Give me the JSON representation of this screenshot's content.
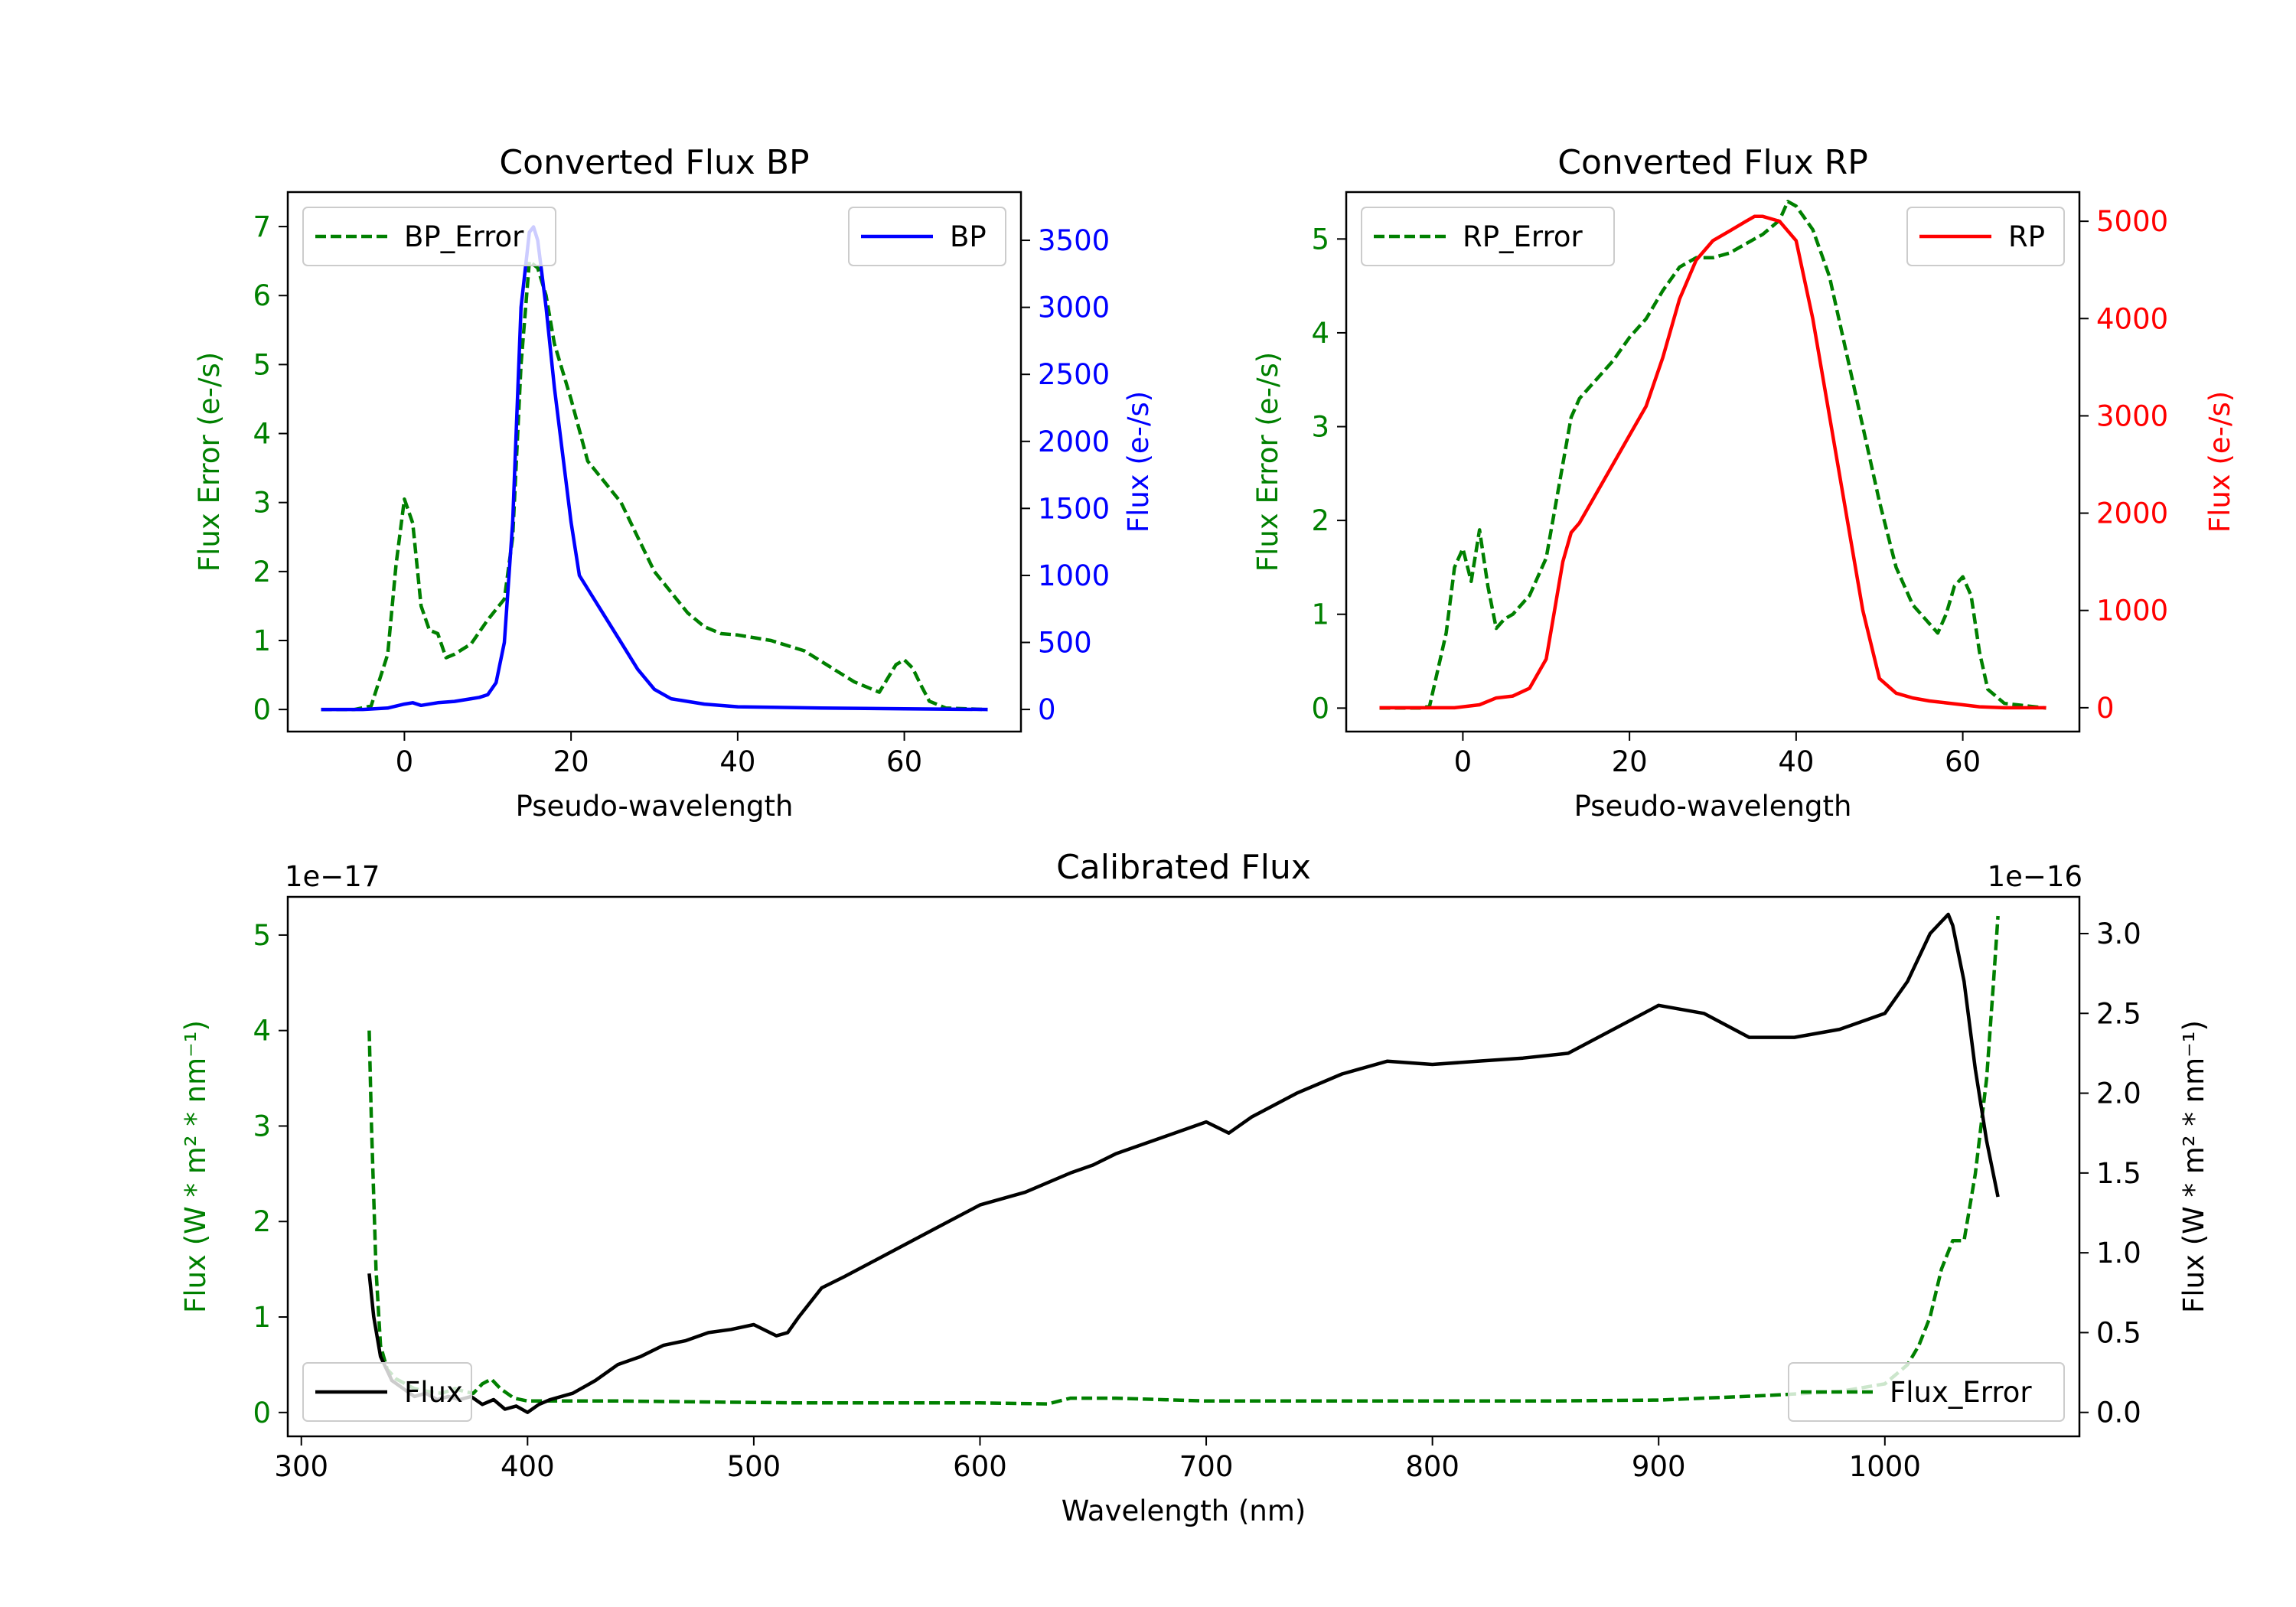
{
  "colors": {
    "bp": "#0000ff",
    "rp": "#ff0000",
    "error": "#008000",
    "flux": "#000000",
    "axis": "#000000"
  },
  "chart_data": [
    {
      "type": "line",
      "title": "Converted Flux BP",
      "xlabel": "Pseudo-wavelength",
      "ylabel_left": "Flux Error (e-/s)",
      "ylabel_right": "Flux (e-/s)",
      "xlim": [
        -14,
        74
      ],
      "ylim_left": [
        -0.32,
        7.5
      ],
      "ylim_right": [
        -165,
        3860
      ],
      "xticks": [
        0,
        20,
        40,
        60
      ],
      "xtick_labels": [
        "0",
        "20",
        "40",
        "60"
      ],
      "yticks_left": [
        0,
        1,
        2,
        3,
        4,
        5,
        6,
        7
      ],
      "ytick_labels_left": [
        "0",
        "1",
        "2",
        "3",
        "4",
        "5",
        "6",
        "7"
      ],
      "yticks_right": [
        0,
        500,
        1000,
        1500,
        2000,
        2500,
        3000,
        3500
      ],
      "ytick_labels_right": [
        "0",
        "500",
        "1000",
        "1500",
        "2000",
        "2500",
        "3000",
        "3500"
      ],
      "legend_left": "BP_Error",
      "legend_right": "BP",
      "series": [
        {
          "name": "BP_Error",
          "axis": "left",
          "style": "dashed",
          "x": [
            -10,
            -6,
            -4,
            -2,
            -1,
            0,
            1,
            2,
            3,
            4,
            5,
            6,
            8,
            10,
            12,
            13,
            14,
            15,
            16,
            17,
            18,
            20,
            22,
            24,
            26,
            28,
            30,
            32,
            34,
            36,
            38,
            40,
            44,
            48,
            50,
            52,
            54,
            56,
            57,
            58,
            59,
            60,
            61,
            62,
            63,
            65,
            70
          ],
          "values": [
            0,
            0,
            0.05,
            0.8,
            2.1,
            3.05,
            2.7,
            1.5,
            1.15,
            1.1,
            0.75,
            0.8,
            0.95,
            1.3,
            1.6,
            2.5,
            5.0,
            6.5,
            6.4,
            6.0,
            5.3,
            4.5,
            3.6,
            3.3,
            3.0,
            2.5,
            2.0,
            1.7,
            1.4,
            1.2,
            1.1,
            1.08,
            1.0,
            0.85,
            0.7,
            0.55,
            0.4,
            0.3,
            0.25,
            0.45,
            0.65,
            0.72,
            0.6,
            0.35,
            0.12,
            0.02,
            0
          ]
        },
        {
          "name": "BP",
          "axis": "right",
          "style": "solid",
          "x": [
            -10,
            -5,
            -2,
            0,
            1,
            2,
            4,
            6,
            8,
            9,
            10,
            11,
            12,
            13,
            14,
            15,
            15.5,
            16,
            17,
            18,
            20,
            21,
            22,
            24,
            26,
            28,
            30,
            32,
            34,
            36,
            40,
            50,
            60,
            70
          ],
          "values": [
            0,
            0,
            10,
            40,
            50,
            30,
            50,
            60,
            80,
            90,
            110,
            200,
            500,
            1400,
            3000,
            3560,
            3600,
            3500,
            3000,
            2400,
            1400,
            1000,
            900,
            700,
            500,
            300,
            150,
            80,
            60,
            40,
            20,
            10,
            5,
            0
          ]
        }
      ]
    },
    {
      "type": "line",
      "title": "Converted Flux RP",
      "xlabel": "Pseudo-wavelength",
      "ylabel_left": "Flux Error (e-/s)",
      "ylabel_right": "Flux (e-/s)",
      "xlim": [
        -14,
        74
      ],
      "ylim_left": [
        -0.25,
        5.5
      ],
      "ylim_right": [
        -245,
        5300
      ],
      "xticks": [
        0,
        20,
        40,
        60
      ],
      "xtick_labels": [
        "0",
        "20",
        "40",
        "60"
      ],
      "yticks_left": [
        0,
        1,
        2,
        3,
        4,
        5
      ],
      "ytick_labels_left": [
        "0",
        "1",
        "2",
        "3",
        "4",
        "5"
      ],
      "yticks_right": [
        0,
        1000,
        2000,
        3000,
        4000,
        5000
      ],
      "ytick_labels_right": [
        "0",
        "1000",
        "2000",
        "3000",
        "4000",
        "5000"
      ],
      "legend_left": "RP_Error",
      "legend_right": "RP",
      "series": [
        {
          "name": "RP_Error",
          "axis": "left",
          "style": "dashed",
          "x": [
            -10,
            -5,
            -4,
            -2,
            -1,
            0,
            1,
            2,
            3,
            4,
            5,
            6,
            8,
            10,
            12,
            13,
            14,
            16,
            18,
            20,
            22,
            24,
            26,
            28,
            30,
            32,
            34,
            36,
            38,
            39,
            40,
            42,
            44,
            46,
            48,
            50,
            52,
            54,
            56,
            57,
            58,
            59,
            60,
            61,
            62,
            63,
            65,
            70
          ],
          "values": [
            0,
            0,
            0.02,
            0.8,
            1.5,
            1.7,
            1.35,
            1.9,
            1.3,
            0.85,
            0.95,
            1.0,
            1.2,
            1.6,
            2.6,
            3.1,
            3.3,
            3.5,
            3.7,
            3.95,
            4.15,
            4.45,
            4.7,
            4.8,
            4.8,
            4.85,
            4.95,
            5.05,
            5.2,
            5.4,
            5.35,
            5.1,
            4.6,
            3.8,
            3.0,
            2.2,
            1.5,
            1.1,
            0.9,
            0.8,
            1.0,
            1.3,
            1.4,
            1.2,
            0.6,
            0.2,
            0.05,
            0
          ]
        },
        {
          "name": "RP",
          "axis": "right",
          "style": "solid",
          "x": [
            -10,
            -5,
            -1,
            2,
            4,
            6,
            8,
            10,
            11,
            12,
            13,
            14,
            16,
            18,
            20,
            22,
            24,
            26,
            28,
            30,
            32,
            34,
            35,
            36,
            38,
            40,
            42,
            44,
            46,
            48,
            50,
            52,
            54,
            56,
            58,
            60,
            62,
            65,
            70
          ],
          "values": [
            0,
            0,
            0,
            30,
            100,
            120,
            200,
            500,
            1000,
            1500,
            1800,
            1900,
            2200,
            2500,
            2800,
            3100,
            3600,
            4200,
            4600,
            4800,
            4900,
            5000,
            5050,
            5050,
            5000,
            4800,
            4000,
            3000,
            2000,
            1000,
            300,
            150,
            100,
            70,
            50,
            30,
            10,
            0,
            0
          ]
        }
      ]
    },
    {
      "type": "line",
      "title": "Calibrated Flux",
      "xlabel": "Wavelength (nm)",
      "ylabel_left": "Flux (W * m² * nm⁻¹)",
      "ylabel_right": "Flux (W * m² * nm⁻¹)",
      "offset_left": "1e−17",
      "offset_right": "1e−16",
      "xlim": [
        294,
        1086
      ],
      "ylim_left": [
        -0.25,
        5.4
      ],
      "ylim_right": [
        -0.15,
        3.23
      ],
      "xticks": [
        300,
        400,
        500,
        600,
        700,
        800,
        900,
        1000
      ],
      "xtick_labels": [
        "300",
        "400",
        "500",
        "600",
        "700",
        "800",
        "900",
        "1000"
      ],
      "yticks_left": [
        0,
        1,
        2,
        3,
        4,
        5
      ],
      "ytick_labels_left": [
        "0",
        "1",
        "2",
        "3",
        "4",
        "5"
      ],
      "yticks_right": [
        0.0,
        0.5,
        1.0,
        1.5,
        2.0,
        2.5,
        3.0
      ],
      "ytick_labels_right": [
        "0.0",
        "0.5",
        "1.0",
        "1.5",
        "2.0",
        "2.5",
        "3.0"
      ],
      "legend_left": "Flux",
      "legend_right": "Flux_Error",
      "series": [
        {
          "name": "Flux_Error",
          "axis": "left",
          "style": "dashed",
          "x": [
            330,
            331,
            333,
            335,
            338,
            342,
            346,
            350,
            356,
            362,
            368,
            372,
            376,
            380,
            384,
            388,
            394,
            400,
            410,
            420,
            440,
            480,
            520,
            560,
            600,
            630,
            640,
            660,
            700,
            750,
            800,
            850,
            900,
            950,
            980,
            1000,
            1010,
            1015,
            1020,
            1025,
            1030,
            1035,
            1040,
            1045,
            1048,
            1050
          ],
          "values": [
            4.0,
            3.0,
            1.5,
            0.7,
            0.45,
            0.35,
            0.3,
            0.25,
            0.22,
            0.2,
            0.25,
            0.22,
            0.2,
            0.3,
            0.35,
            0.25,
            0.15,
            0.12,
            0.12,
            0.12,
            0.12,
            0.11,
            0.1,
            0.1,
            0.1,
            0.09,
            0.15,
            0.15,
            0.12,
            0.12,
            0.12,
            0.12,
            0.13,
            0.18,
            0.22,
            0.3,
            0.5,
            0.7,
            1.0,
            1.5,
            1.8,
            1.8,
            2.5,
            3.5,
            4.5,
            5.2
          ]
        },
        {
          "name": "Flux",
          "axis": "right",
          "style": "solid",
          "x": [
            330,
            332,
            335,
            340,
            345,
            350,
            355,
            360,
            365,
            370,
            375,
            380,
            385,
            390,
            395,
            400,
            405,
            410,
            420,
            430,
            440,
            450,
            460,
            470,
            480,
            490,
            500,
            510,
            515,
            520,
            530,
            540,
            560,
            580,
            600,
            620,
            640,
            650,
            660,
            680,
            700,
            710,
            720,
            740,
            760,
            780,
            800,
            820,
            840,
            860,
            880,
            900,
            920,
            940,
            960,
            980,
            1000,
            1010,
            1020,
            1028,
            1030,
            1035,
            1040,
            1045,
            1050
          ],
          "values": [
            0.87,
            0.6,
            0.35,
            0.2,
            0.15,
            0.1,
            0.12,
            0.08,
            0.1,
            0.08,
            0.1,
            0.05,
            0.08,
            0.02,
            0.04,
            0.0,
            0.05,
            0.08,
            0.12,
            0.2,
            0.3,
            0.35,
            0.42,
            0.45,
            0.5,
            0.52,
            0.55,
            0.48,
            0.5,
            0.6,
            0.78,
            0.85,
            1.0,
            1.15,
            1.3,
            1.38,
            1.5,
            1.55,
            1.62,
            1.72,
            1.82,
            1.75,
            1.85,
            2.0,
            2.12,
            2.2,
            2.18,
            2.2,
            2.22,
            2.25,
            2.4,
            2.55,
            2.5,
            2.35,
            2.35,
            2.4,
            2.5,
            2.7,
            3.0,
            3.12,
            3.05,
            2.7,
            2.15,
            1.7,
            1.35
          ]
        }
      ]
    }
  ]
}
